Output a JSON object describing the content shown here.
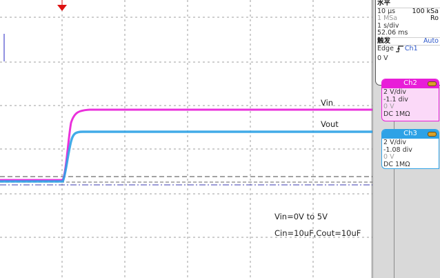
{
  "plot": {
    "labels": {
      "vin": "Vin",
      "vout": "Vout",
      "note_line1": "Vin=0V to 5V",
      "note_line2": "Cin=10uF,Cout=10uF"
    },
    "colors": {
      "ch2": "#e81ed8",
      "ch3": "#2ea2e6",
      "trigger_marker": "#dd1111",
      "grid": "#9c9c9c"
    }
  },
  "horizontal": {
    "header": "水平",
    "time_per_div": "10 µs",
    "sample_rate": "100 kSa",
    "memory": "1 MSa",
    "mode": "Ro",
    "record": "1 s/div",
    "duration": "52.06 ms"
  },
  "trigger": {
    "header": "触发",
    "mode": "Auto",
    "type": "Edge",
    "source": "Ch1",
    "level": "0 V"
  },
  "channels": [
    {
      "name": "Ch2",
      "color": "#e81ed8",
      "scale": "2 V/div",
      "offset": "-1.1 div",
      "position": "0 V",
      "coupling": "DC 1MΩ"
    },
    {
      "name": "Ch3",
      "color": "#2ea2e6",
      "scale": "2 V/div",
      "offset": "-1.08 div",
      "position": "0 V",
      "coupling": "DC 1MΩ"
    }
  ]
}
